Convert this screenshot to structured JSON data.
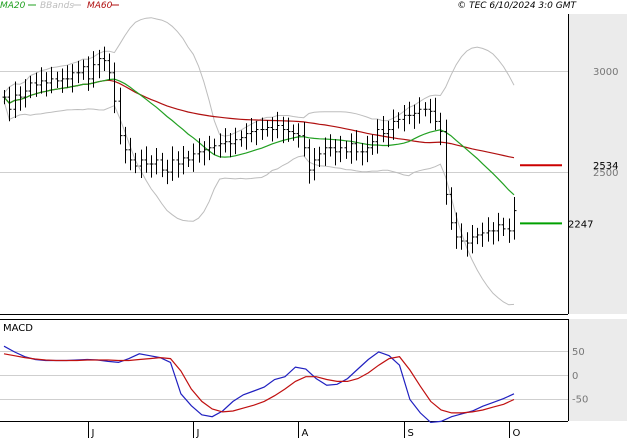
{
  "header": {
    "ma20_label": "MA20",
    "bbands_label": "BBands",
    "ma60_label": "MA60",
    "copyright": "© TEC 6/10/2024 3:0 GMT"
  },
  "macd_panel": {
    "title": "MACD"
  },
  "colors": {
    "ma20": "#22a022",
    "ma60": "#b01010",
    "bbands": "#bdbdbd",
    "price": "#000000",
    "macd_line": "#2020c0",
    "signal_line": "#c01010",
    "resistance": "#cc0000",
    "support": "#00a000",
    "gridline": "#cfcfcf",
    "axis_panel": "#ebebeb"
  },
  "chart_data": [
    {
      "type": "ohlc",
      "title": "",
      "y_ticks": [
        3000,
        2500
      ],
      "ylim": [
        1800,
        3280
      ],
      "grid": true,
      "x_ticks": [
        "J",
        "J",
        "A",
        "S",
        "O"
      ],
      "x_tick_index": [
        16,
        36,
        56,
        76,
        96
      ],
      "bar_count": 98,
      "close": [
        2870,
        2810,
        2880,
        2870,
        2900,
        2940,
        2930,
        2950,
        2940,
        2960,
        2950,
        2960,
        2960,
        2990,
        2990,
        3020,
        2960,
        3030,
        3060,
        3050,
        2990,
        2850,
        2680,
        2610,
        2560,
        2530,
        2560,
        2540,
        2540,
        2560,
        2510,
        2500,
        2560,
        2540,
        2570,
        2560,
        2590,
        2600,
        2610,
        2620,
        2630,
        2640,
        2650,
        2640,
        2660,
        2670,
        2690,
        2700,
        2710,
        2710,
        2720,
        2710,
        2730,
        2710,
        2700,
        2690,
        2680,
        2620,
        2510,
        2560,
        2590,
        2620,
        2620,
        2600,
        2620,
        2600,
        2640,
        2600,
        2600,
        2620,
        2650,
        2710,
        2690,
        2710,
        2750,
        2760,
        2780,
        2780,
        2790,
        2810,
        2810,
        2800,
        2750,
        2700,
        2390,
        2250,
        2180,
        2160,
        2150,
        2180,
        2190,
        2200,
        2210,
        2210,
        2240,
        2220,
        2210,
        2310
      ],
      "low_high_range": [
        1980,
        3170
      ],
      "indicators": {
        "ma20_end": 2280,
        "ma60_end": 2390,
        "bbands_lower_min": 1940,
        "bbands_upper_max": 3200
      },
      "levels": [
        {
          "name": "resistance",
          "value": 2534,
          "label": "2534"
        },
        {
          "name": "support",
          "value": 2247,
          "label": "2247"
        }
      ]
    },
    {
      "type": "line",
      "title": "MACD",
      "y_ticks": [
        50,
        0,
        -50
      ],
      "y_tick_labels": [
        "50",
        "0",
        "-50"
      ],
      "ylim": [
        -95,
        115
      ],
      "series": [
        {
          "name": "MACD",
          "color": "#2020c0",
          "values": [
            60,
            48,
            38,
            32,
            30,
            30,
            30,
            31,
            32,
            31,
            28,
            26,
            34,
            44,
            40,
            36,
            26,
            -40,
            -65,
            -84,
            -88,
            -76,
            -56,
            -42,
            -34,
            -26,
            -10,
            -4,
            16,
            12,
            -8,
            -22,
            -20,
            -8,
            12,
            32,
            48,
            40,
            20,
            -52,
            -80,
            -100,
            -98,
            -88,
            -82,
            -76,
            -66,
            -58,
            -50,
            -40
          ]
        },
        {
          "name": "Signal",
          "color": "#c01010",
          "values": [
            44,
            40,
            36,
            33,
            31,
            30,
            30,
            30,
            31,
            31,
            31,
            30,
            30,
            32,
            34,
            36,
            34,
            8,
            -30,
            -56,
            -72,
            -78,
            -76,
            -70,
            -64,
            -56,
            -44,
            -30,
            -14,
            -4,
            -4,
            -10,
            -14,
            -14,
            -8,
            4,
            20,
            34,
            38,
            10,
            -24,
            -56,
            -74,
            -80,
            -80,
            -78,
            -74,
            -68,
            -62,
            -52
          ]
        }
      ]
    }
  ]
}
